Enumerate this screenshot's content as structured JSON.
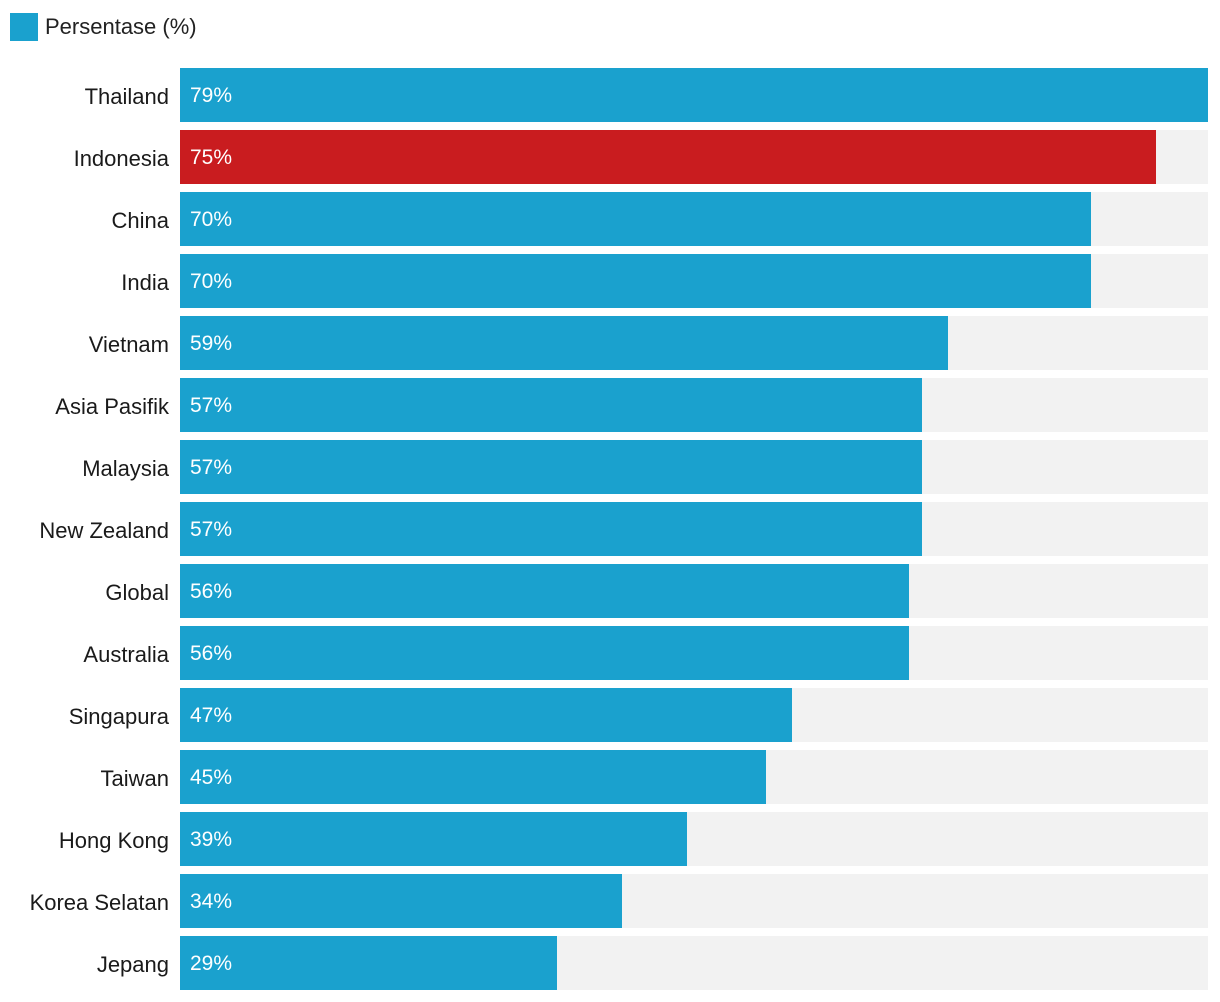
{
  "chart_data": {
    "type": "bar",
    "orientation": "horizontal",
    "categories": [
      "Thailand",
      "Indonesia",
      "China",
      "India",
      "Vietnam",
      "Asia Pasifik",
      "Malaysia",
      "New Zealand",
      "Global",
      "Australia",
      "Singapura",
      "Taiwan",
      "Hong Kong",
      "Korea Selatan",
      "Jepang"
    ],
    "series": [
      {
        "name": "Persentase (%)",
        "values": [
          79,
          75,
          70,
          70,
          59,
          57,
          57,
          57,
          56,
          56,
          47,
          45,
          39,
          34,
          29
        ],
        "value_labels": [
          "79%",
          "75%",
          "70%",
          "70%",
          "59%",
          "57%",
          "57%",
          "57%",
          "56%",
          "56%",
          "47%",
          "45%",
          "39%",
          "34%",
          "29%"
        ]
      }
    ],
    "highlight_category": "Indonesia",
    "xlim": [
      0,
      79
    ],
    "legend_position": "top-left",
    "grid": false,
    "colors": {
      "bar": "#1aa1ce",
      "highlight": "#c91c1f",
      "track": "#f2f2f2"
    }
  }
}
